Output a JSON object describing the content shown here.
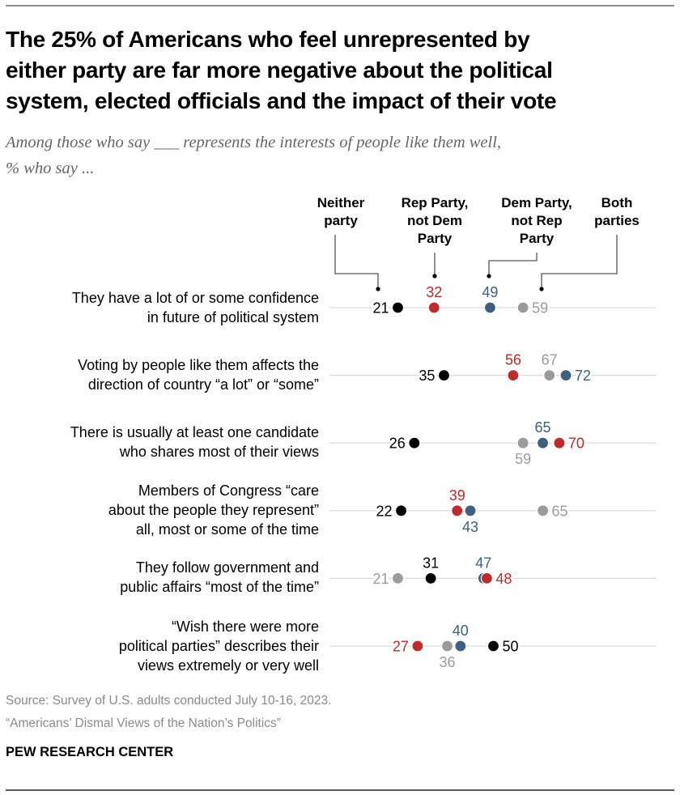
{
  "header": {
    "title": "The 25% of Americans who feel unrepresented by either party are far more negative about the political system, elected officials and the impact of their vote",
    "title_lines": [
      "The 25% of Americans who feel unrepresented by",
      "either party are far more negative about the political",
      "system, elected officials and the impact of their vote"
    ],
    "subtitle_lines": [
      "Among those who say ___ represents the interests of people like them well,",
      "% who say ..."
    ]
  },
  "footer": {
    "source": "Source: Survey of U.S. adults conducted July 10-16, 2023.",
    "report": "“Americans’ Dismal Views of the Nation’s Politics”",
    "brand": "PEW RESEARCH CENTER"
  },
  "colors": {
    "neither": "#000000",
    "rep": "#bf2b2b",
    "dem": "#3d5f82",
    "both": "#9b9b9b",
    "gridline": "#d9d9d9",
    "leader": "#555555"
  },
  "chart_data": {
    "type": "scatter",
    "subtype": "dot-plot",
    "title": "The 25% of Americans who feel unrepresented by either party are far more negative about the political system, elected officials and the impact of their vote",
    "subtitle": "Among those who say ___ represents the interests of people like them well, % who say ...",
    "xlabel": "",
    "ylabel": "",
    "xlim": [
      0,
      100
    ],
    "grid": true,
    "legend_placement": "top (labels above first row with leader lines)",
    "legend": [
      {
        "key": "neither",
        "lines": [
          "Neither",
          "party"
        ]
      },
      {
        "key": "rep",
        "lines": [
          "Rep Party,",
          "not Dem",
          "Party"
        ]
      },
      {
        "key": "dem",
        "lines": [
          "Dem Party,",
          "not Rep",
          "Party"
        ]
      },
      {
        "key": "both",
        "lines": [
          "Both",
          "parties"
        ]
      }
    ],
    "categories": [
      "They have a lot of or some confidence in future of political system",
      "Voting by people like them affects the direction of country “a lot” or “some”",
      "There is usually at least one candidate who shares most of their views",
      "Members of Congress “care about the people they represent” all, most or some of the time",
      "They follow government and public affairs “most of the time”",
      "“Wish there were more political parties” describes their views extremely or very well"
    ],
    "category_lines": [
      [
        "They have a lot of or some confidence",
        "in future of political system"
      ],
      [
        "Voting by people like them affects the",
        "direction of country “a lot” or “some”"
      ],
      [
        "There is usually at least one candidate",
        "who shares most of their views"
      ],
      [
        "Members of Congress “care",
        "about the people they represent”",
        "all, most or some of the time"
      ],
      [
        "They follow government and",
        "public affairs “most of the time”"
      ],
      [
        "“Wish there were more",
        "political parties” describes their",
        "views extremely or very well"
      ]
    ],
    "series": [
      {
        "key": "neither",
        "name": "Neither party",
        "values": [
          21,
          35,
          26,
          22,
          31,
          50
        ],
        "label_pos": [
          "left",
          "left",
          "left",
          "left",
          "above",
          "right"
        ]
      },
      {
        "key": "rep",
        "name": "Rep Party, not Dem Party",
        "values": [
          32,
          56,
          70,
          39,
          48,
          27
        ],
        "label_pos": [
          "above",
          "above",
          "right",
          "above",
          "right",
          "left"
        ]
      },
      {
        "key": "dem",
        "name": "Dem Party, not Rep Party",
        "values": [
          49,
          72,
          65,
          43,
          47,
          40
        ],
        "label_pos": [
          "above",
          "right",
          "above",
          "below",
          "above",
          "above"
        ]
      },
      {
        "key": "both",
        "name": "Both parties",
        "values": [
          59,
          67,
          59,
          65,
          21,
          36
        ],
        "label_pos": [
          "right",
          "above",
          "below",
          "right",
          "left",
          "below"
        ]
      }
    ],
    "draw_order": [
      "both",
      "dem",
      "rep",
      "neither"
    ]
  }
}
